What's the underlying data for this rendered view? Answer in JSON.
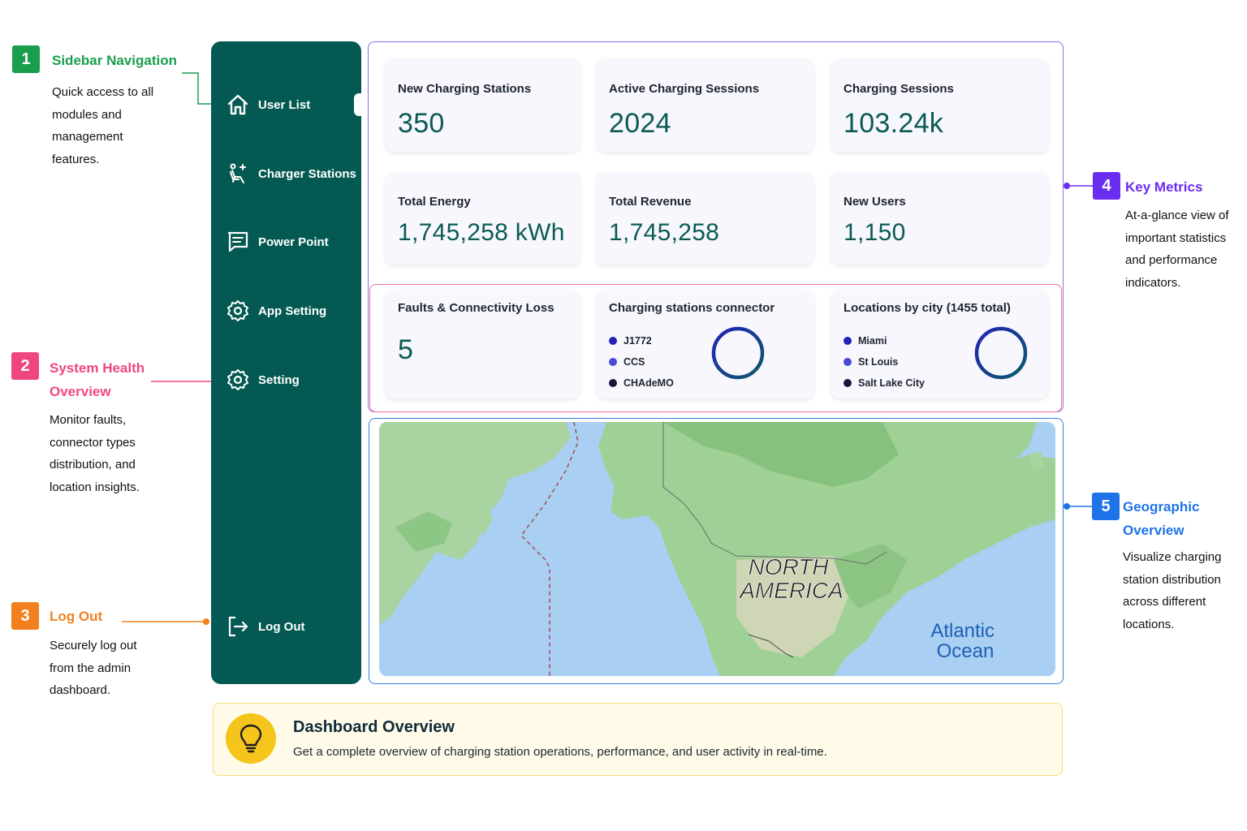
{
  "callouts": {
    "sidebar": {
      "number": "1",
      "title": "Sidebar Navigation",
      "description_lines": [
        "Quick access to all",
        "modules and",
        "management",
        "features."
      ],
      "color": "#1a9e4d"
    },
    "health": {
      "number": "2",
      "title_lines": [
        "System Health",
        "Overview"
      ],
      "description_lines": [
        "Monitor faults,",
        "connector types",
        "distribution, and",
        "location insights."
      ],
      "color": "#f0467f"
    },
    "logout": {
      "number": "3",
      "title": "Log Out",
      "description_lines": [
        "Securely log out",
        "from the admin",
        "dashboard."
      ],
      "color": "#f2801f"
    },
    "metrics": {
      "number": "4",
      "title": "Key Metrics",
      "description_lines": [
        "At-a-glance view of",
        "important statistics",
        "and performance",
        "indicators."
      ],
      "color": "#6a2df0"
    },
    "geo": {
      "number": "5",
      "title_lines": [
        "Geographic",
        "Overview"
      ],
      "description_lines": [
        "Visualize charging",
        "station distribution",
        "across different",
        "locations."
      ],
      "color": "#1e73e8"
    }
  },
  "sidebar": {
    "items": [
      {
        "label": "User List",
        "icon": "home-icon"
      },
      {
        "label": "Charger Stations",
        "icon": "charger-seat-icon"
      },
      {
        "label": "Power Point",
        "icon": "message-icon"
      },
      {
        "label": "App Setting",
        "icon": "gear-icon"
      },
      {
        "label": "Setting",
        "icon": "gear-icon"
      }
    ],
    "logout": {
      "label": "Log Out",
      "icon": "logout-icon"
    },
    "background": "#045a52"
  },
  "metrics": [
    {
      "title": "New Charging Stations",
      "value": "350"
    },
    {
      "title": "Active Charging Sessions",
      "value": "2024"
    },
    {
      "title": "Charging Sessions",
      "value": "103.24k"
    },
    {
      "title": "Total Energy",
      "value": "1,745,258 kWh"
    },
    {
      "title": "Total Revenue",
      "value": "1,745,258"
    },
    {
      "title": "New Users",
      "value": "1,150"
    }
  ],
  "health": {
    "faults": {
      "title": "Faults & Connectivity Loss",
      "value": "5"
    },
    "connectors": {
      "title": "Charging stations connector",
      "legend": [
        {
          "label": "J1772",
          "color": "#2323b8"
        },
        {
          "label": "CCS",
          "color": "#4b4ad6"
        },
        {
          "label": "CHAdeMO",
          "color": "#15173a"
        }
      ]
    },
    "locations": {
      "title": "Locations by city (1455 total)",
      "legend": [
        {
          "label": "Miami",
          "color": "#2323b8"
        },
        {
          "label": "St Louis",
          "color": "#4b4ad6"
        },
        {
          "label": "Salt Lake City",
          "color": "#15173a"
        }
      ]
    }
  },
  "map": {
    "continent_lines": [
      "NORTH",
      "AMERICA"
    ],
    "ocean_lines": [
      "Atlantic",
      "Ocean"
    ]
  },
  "banner": {
    "title": "Dashboard Overview",
    "description": "Get a complete overview of charging station operations, performance, and user activity in real-time.",
    "icon": "lightbulb-icon"
  }
}
